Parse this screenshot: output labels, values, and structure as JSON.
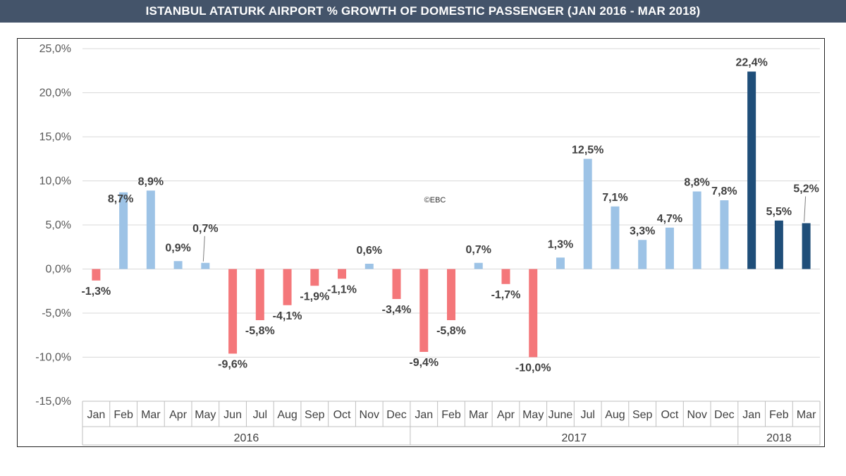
{
  "title": "ISTANBUL ATATURK AIRPORT % GROWTH OF DOMESTIC PASSENGER (JAN 2016 - MAR 2018)",
  "watermark": "©EBC",
  "colors": {
    "header_bg": "#44546a",
    "positive": "#9dc3e6",
    "negative": "#f4777a",
    "highlight_2018": "#1f4e79",
    "grid": "#d9d9d9"
  },
  "chart_data": {
    "type": "bar",
    "title": "ISTANBUL ATATURK AIRPORT % GROWTH OF DOMESTIC PASSENGER (JAN 2016 - MAR 2018)",
    "xlabel": "",
    "ylabel": "",
    "ylim": [
      -15,
      25
    ],
    "yticks": [
      25,
      20,
      15,
      10,
      5,
      0,
      -5,
      -10,
      -15
    ],
    "ytick_labels": [
      "25,0%",
      "20,0%",
      "15,0%",
      "10,0%",
      "5,0%",
      "0,0%",
      "-5,0%",
      "-10,0%",
      "-15,0%"
    ],
    "grid": true,
    "legend": "none",
    "categories": [
      "Jan",
      "Feb",
      "Mar",
      "Apr",
      "May",
      "Jun",
      "Jul",
      "Aug",
      "Sep",
      "Oct",
      "Nov",
      "Dec",
      "Jan",
      "Feb",
      "Mar",
      "Apr",
      "May",
      "June",
      "Jul",
      "Aug",
      "Sep",
      "Oct",
      "Nov",
      "Dec",
      "Jan",
      "Feb",
      "Mar"
    ],
    "years": [
      {
        "label": "2016",
        "count": 12
      },
      {
        "label": "2017",
        "count": 12
      },
      {
        "label": "2018",
        "count": 3
      }
    ],
    "values": [
      -1.3,
      8.7,
      8.9,
      0.9,
      0.7,
      -9.6,
      -5.8,
      -4.1,
      -1.9,
      -1.1,
      0.6,
      -3.4,
      -9.4,
      -5.8,
      0.7,
      -1.7,
      -10.0,
      1.3,
      12.5,
      7.1,
      3.3,
      4.7,
      8.8,
      7.8,
      22.4,
      5.5,
      5.2
    ],
    "labels": [
      "-1,3%",
      "8,7%",
      "8,9%",
      "0,9%",
      "0,7%",
      "-9,6%",
      "-5,8%",
      "-4,1%",
      "-1,9%",
      "-1,1%",
      "0,6%",
      "-3,4%",
      "-9,4%",
      "-5,8%",
      "0,7%",
      "-1,7%",
      "-10,0%",
      "1,3%",
      "12,5%",
      "7,1%",
      "3,3%",
      "4,7%",
      "8,8%",
      "7,8%",
      "22,4%",
      "5,5%",
      "5,2%"
    ]
  }
}
